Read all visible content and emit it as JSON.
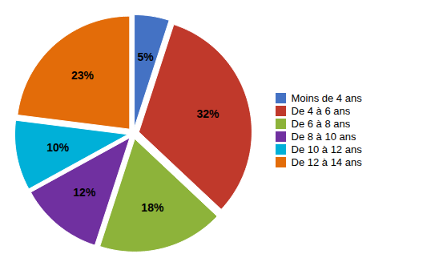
{
  "chart_data": {
    "type": "pie",
    "categories": [
      "Moins de 4 ans",
      "De 4 à 6 ans",
      "De 6 à 8 ans",
      "De 8 à 10 ans",
      "De 10 à 12 ans",
      "De 12 à 14 ans"
    ],
    "values": [
      5,
      32,
      18,
      12,
      10,
      23
    ],
    "value_labels": [
      "5%",
      "32%",
      "18%",
      "12%",
      "10%",
      "23%"
    ],
    "colors": [
      "#4472C4",
      "#C0392B",
      "#8DB33A",
      "#7030A0",
      "#00B0D8",
      "#E36C09"
    ],
    "data_labels": true,
    "legend": "right"
  }
}
